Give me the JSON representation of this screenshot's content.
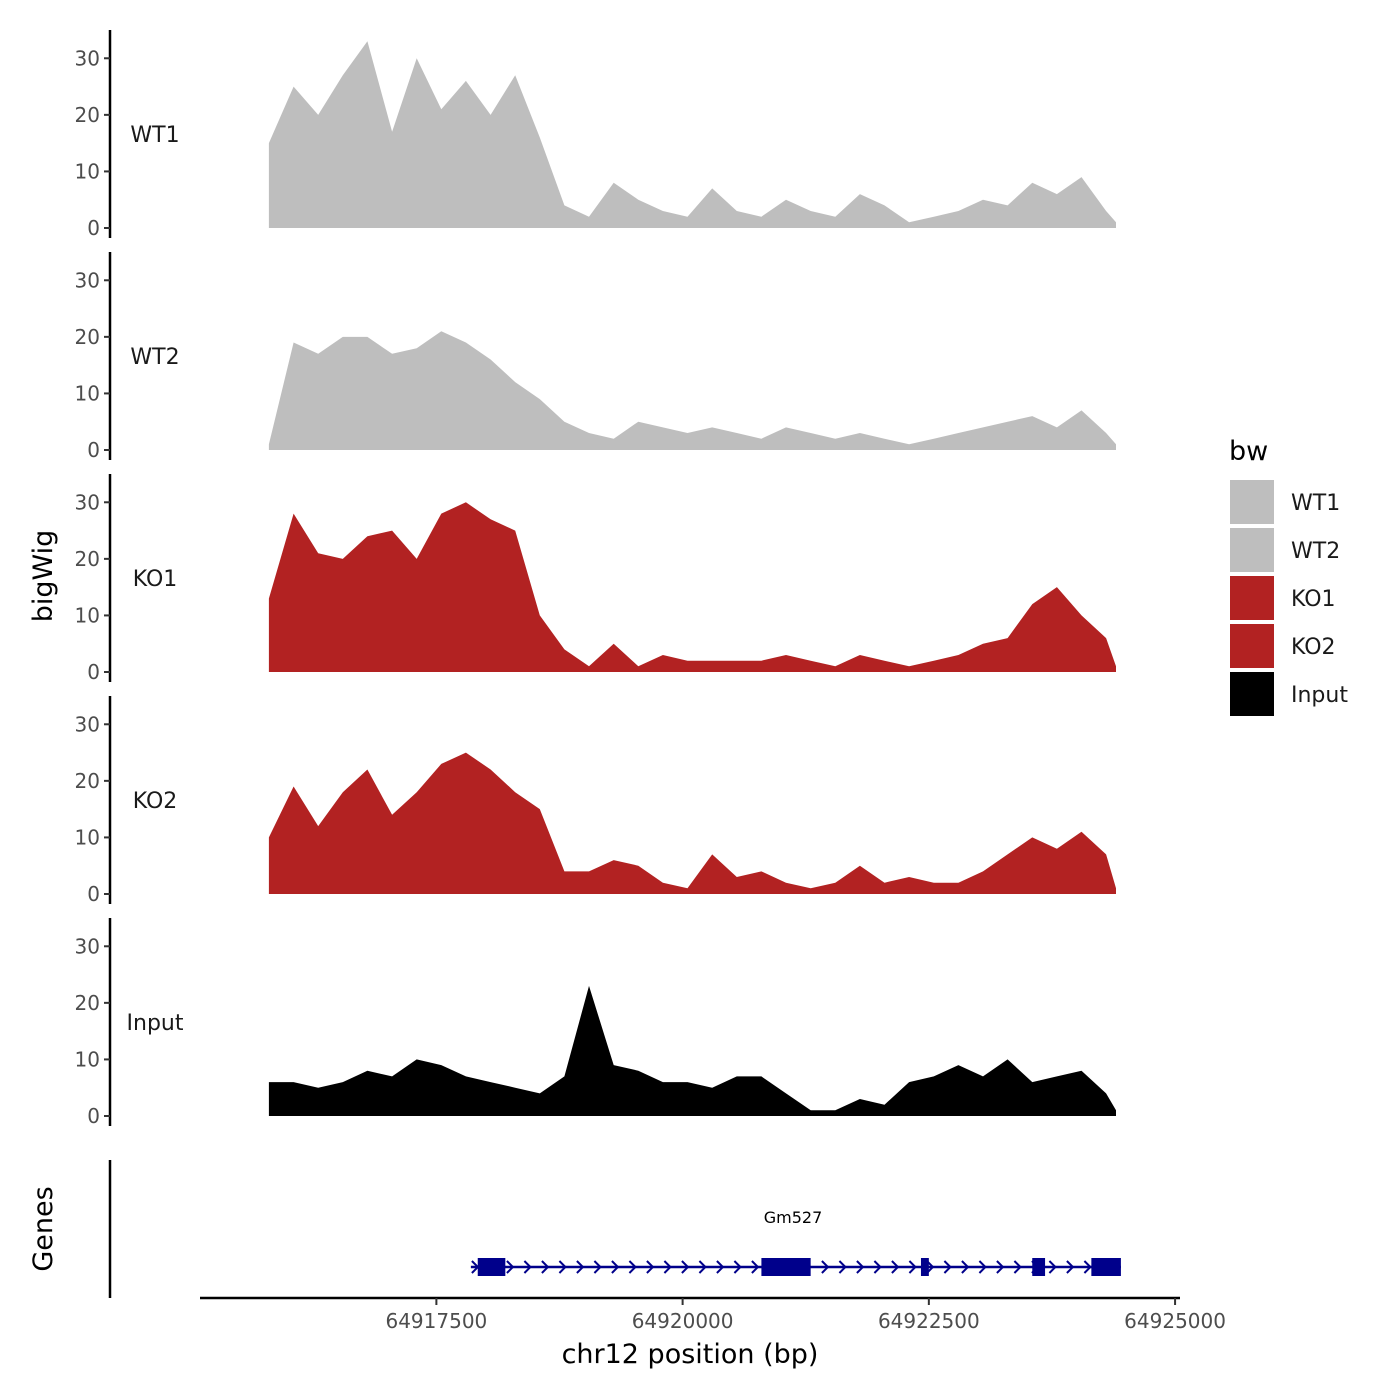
{
  "chart_data": {
    "type": "area",
    "title": "",
    "ylabel": "bigWig",
    "xlabel": "chr12 position (bp)",
    "genes_label": "Genes",
    "xlim": [
      64915100,
      64925050
    ],
    "ylim": [
      0,
      35
    ],
    "x_ticks": [
      64917500,
      64920000,
      64922500,
      64925000
    ],
    "x_tick_labels": [
      "64917500",
      "64920000",
      "64922500",
      "64925000"
    ],
    "y_ticks": [
      0,
      10,
      20,
      30
    ],
    "y_tick_labels": [
      "0",
      "10",
      "20",
      "30"
    ],
    "x": [
      64915800,
      64916050,
      64916300,
      64916550,
      64916800,
      64917050,
      64917300,
      64917550,
      64917800,
      64918050,
      64918300,
      64918550,
      64918800,
      64919050,
      64919300,
      64919550,
      64919800,
      64920050,
      64920300,
      64920550,
      64920800,
      64921050,
      64921300,
      64921550,
      64921800,
      64922050,
      64922300,
      64922550,
      64922800,
      64923050,
      64923300,
      64923550,
      64923800,
      64924050,
      64924300,
      64924400
    ],
    "series": [
      {
        "name": "WT1",
        "color": "#bebebe",
        "values": [
          15,
          25,
          20,
          27,
          33,
          17,
          30,
          21,
          26,
          20,
          27,
          16,
          4,
          2,
          8,
          5,
          3,
          2,
          7,
          3,
          2,
          5,
          3,
          2,
          6,
          4,
          1,
          2,
          3,
          5,
          4,
          8,
          6,
          9,
          3,
          1
        ]
      },
      {
        "name": "WT2",
        "color": "#bebebe",
        "values": [
          1,
          19,
          17,
          20,
          20,
          17,
          18,
          21,
          19,
          16,
          12,
          9,
          5,
          3,
          2,
          5,
          4,
          3,
          4,
          3,
          2,
          4,
          3,
          2,
          3,
          2,
          1,
          2,
          3,
          4,
          5,
          6,
          4,
          7,
          3,
          1
        ]
      },
      {
        "name": "KO1",
        "color": "#b22222",
        "values": [
          13,
          28,
          21,
          20,
          24,
          25,
          20,
          28,
          30,
          27,
          25,
          10,
          4,
          1,
          5,
          1,
          3,
          2,
          2,
          2,
          2,
          3,
          2,
          1,
          3,
          2,
          1,
          2,
          3,
          5,
          6,
          12,
          15,
          10,
          6,
          1
        ]
      },
      {
        "name": "KO2",
        "color": "#b22222",
        "values": [
          10,
          19,
          12,
          18,
          22,
          14,
          18,
          23,
          25,
          22,
          18,
          15,
          4,
          4,
          6,
          5,
          2,
          1,
          7,
          3,
          4,
          2,
          1,
          2,
          5,
          2,
          3,
          2,
          2,
          4,
          7,
          10,
          8,
          11,
          7,
          1
        ]
      },
      {
        "name": "Input",
        "color": "#000000",
        "values": [
          6,
          6,
          5,
          6,
          8,
          7,
          10,
          9,
          7,
          6,
          5,
          4,
          7,
          23,
          9,
          8,
          6,
          6,
          5,
          7,
          7,
          4,
          1,
          1,
          3,
          2,
          6,
          7,
          9,
          7,
          10,
          6,
          7,
          8,
          4,
          1
        ]
      }
    ],
    "legend": {
      "title": "bw",
      "position": "right",
      "entries": [
        {
          "label": "WT1",
          "color": "#bebebe"
        },
        {
          "label": "WT2",
          "color": "#bebebe"
        },
        {
          "label": "KO1",
          "color": "#b22222"
        },
        {
          "label": "KO2",
          "color": "#b22222"
        },
        {
          "label": "Input",
          "color": "#000000"
        }
      ]
    },
    "gene": {
      "name": "Gm527",
      "color": "#00008b",
      "strand": "+",
      "start": 64917850,
      "end": 64924450,
      "exons": [
        [
          64917920,
          64918200
        ],
        [
          64920800,
          64921300
        ],
        [
          64922420,
          64922500
        ],
        [
          64923550,
          64923680
        ],
        [
          64924150,
          64924450
        ]
      ]
    }
  }
}
